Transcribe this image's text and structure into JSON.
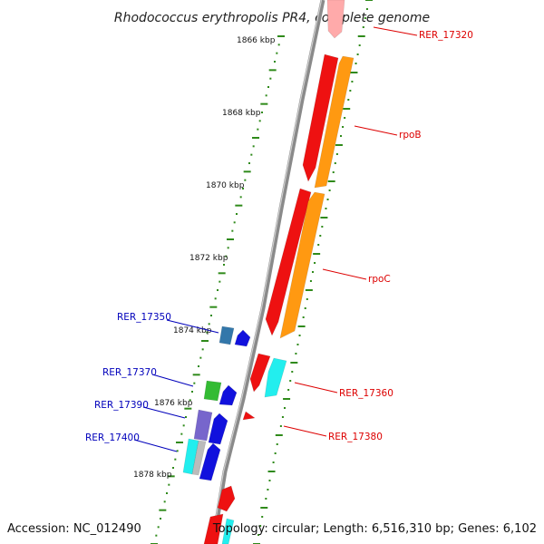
{
  "title": "Rhodococcus erythropolis PR4, complete genome",
  "accession": "Accession: NC_012490",
  "topology": "Topology: circular; Length: 6,516,310 bp; Genes: 6,102",
  "colors": {
    "backbone": "#8a8a8a",
    "tick": "#2f8a1a",
    "gene_red": "#ee1111",
    "gene_orange": "#ff9911",
    "gene_cyan": "#22eeee",
    "gene_blue": "#1111dd",
    "gene_green": "#33bb33",
    "gene_steel": "#3377aa",
    "gene_purple": "#7766cc",
    "gene_grey": "#bbbbbb",
    "gene_pink": "#ffaaaa",
    "label_red": "#dd0000",
    "label_blue": "#0000bb"
  },
  "kbp_marks": [
    "1866 kbp",
    "1868 kbp",
    "1870 kbp",
    "1872 kbp",
    "1874 kbp",
    "1876 kbp",
    "1878 kbp"
  ],
  "gene_labels": {
    "red": [
      "RER_17320",
      "rpoB",
      "rpoC",
      "RER_17360",
      "RER_17380"
    ],
    "blue": [
      "RER_17350",
      "RER_17370",
      "RER_17390",
      "RER_17400"
    ]
  }
}
